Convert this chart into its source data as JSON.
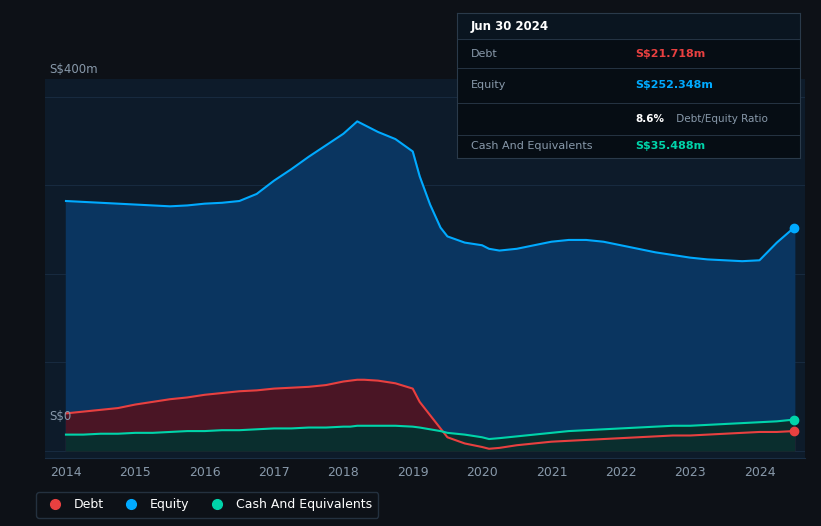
{
  "bg_color": "#0d1117",
  "plot_bg_color": "#0d1b2a",
  "ylabel": "S$400m",
  "y0_label": "S$0",
  "x_ticks": [
    2014,
    2015,
    2016,
    2017,
    2018,
    2019,
    2020,
    2021,
    2022,
    2023,
    2024
  ],
  "equity_color": "#00aaff",
  "debt_color": "#e84040",
  "cash_color": "#00d4aa",
  "equity_fill": "#0a3560",
  "debt_fill": "#4a1525",
  "cash_fill": "#0a2e2e",
  "grid_color": "#1a2e44",
  "text_color": "#8899aa",
  "tooltip_bg": "#060d14",
  "tooltip_border": "#2a3a4a",
  "years": [
    2014.0,
    2014.25,
    2014.5,
    2014.75,
    2015.0,
    2015.25,
    2015.5,
    2015.75,
    2016.0,
    2016.25,
    2016.5,
    2016.75,
    2017.0,
    2017.25,
    2017.5,
    2017.75,
    2018.0,
    2018.1,
    2018.2,
    2018.3,
    2018.5,
    2018.75,
    2019.0,
    2019.1,
    2019.25,
    2019.4,
    2019.5,
    2019.75,
    2020.0,
    2020.1,
    2020.25,
    2020.5,
    2020.75,
    2021.0,
    2021.25,
    2021.5,
    2021.75,
    2022.0,
    2022.25,
    2022.5,
    2022.75,
    2023.0,
    2023.25,
    2023.5,
    2023.75,
    2024.0,
    2024.25,
    2024.5
  ],
  "equity": [
    282,
    281,
    280,
    279,
    278,
    277,
    276,
    277,
    279,
    280,
    282,
    290,
    305,
    318,
    332,
    345,
    358,
    365,
    372,
    368,
    360,
    352,
    338,
    310,
    278,
    252,
    242,
    235,
    232,
    228,
    226,
    228,
    232,
    236,
    238,
    238,
    236,
    232,
    228,
    224,
    221,
    218,
    216,
    215,
    214,
    215,
    235,
    252
  ],
  "debt": [
    42,
    44,
    46,
    48,
    52,
    55,
    58,
    60,
    63,
    65,
    67,
    68,
    70,
    71,
    72,
    74,
    78,
    79,
    80,
    80,
    79,
    76,
    70,
    55,
    40,
    25,
    15,
    8,
    4,
    2,
    3,
    6,
    8,
    10,
    11,
    12,
    13,
    14,
    15,
    16,
    17,
    17,
    18,
    19,
    20,
    21,
    21,
    22
  ],
  "cash": [
    18,
    18,
    19,
    19,
    20,
    20,
    21,
    22,
    22,
    23,
    23,
    24,
    25,
    25,
    26,
    26,
    27,
    27,
    28,
    28,
    28,
    28,
    27,
    26,
    24,
    22,
    20,
    18,
    15,
    13,
    14,
    16,
    18,
    20,
    22,
    23,
    24,
    25,
    26,
    27,
    28,
    28,
    29,
    30,
    31,
    32,
    33,
    35
  ],
  "legend_items": [
    "Debt",
    "Equity",
    "Cash And Equivalents"
  ],
  "legend_colors": [
    "#e84040",
    "#00aaff",
    "#00d4aa"
  ],
  "tooltip_title": "Jun 30 2024",
  "tooltip_debt_label": "Debt",
  "tooltip_debt_value": "S$21.718m",
  "tooltip_equity_label": "Equity",
  "tooltip_equity_value": "S$252.348m",
  "tooltip_ratio_bold": "8.6%",
  "tooltip_ratio_normal": " Debt/Equity Ratio",
  "tooltip_cash_label": "Cash And Equivalents",
  "tooltip_cash_value": "S$35.488m"
}
